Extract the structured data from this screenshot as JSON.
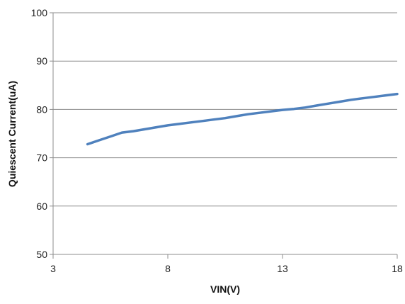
{
  "chart_data": {
    "type": "line",
    "title": "",
    "xlabel": "VIN(V)",
    "ylabel": "Quiescent Current(uA)",
    "xlim": [
      3,
      18
    ],
    "ylim": [
      50,
      100
    ],
    "x_ticks": [
      3,
      8,
      13,
      18
    ],
    "y_ticks": [
      50,
      60,
      70,
      80,
      90,
      100
    ],
    "grid": {
      "horizontal": true,
      "vertical": false
    },
    "legend": "none",
    "colors": {
      "series": "#4f81bd",
      "grid": "#8c8c8c",
      "axis": "#8c8c8c"
    },
    "series": [
      {
        "x": [
          4.5,
          5.0,
          5.5,
          6.0,
          6.5,
          7.0,
          7.5,
          8.0,
          8.5,
          9.0,
          9.5,
          10.0,
          10.5,
          11.0,
          11.5,
          12.0,
          12.5,
          13.0,
          13.5,
          14.0,
          14.5,
          15.0,
          15.5,
          16.0,
          16.5,
          17.0,
          17.5,
          18.0
        ],
        "values": [
          72.8,
          73.6,
          74.4,
          75.2,
          75.5,
          75.9,
          76.3,
          76.7,
          77.0,
          77.3,
          77.6,
          77.9,
          78.2,
          78.6,
          79.0,
          79.3,
          79.6,
          79.9,
          80.1,
          80.4,
          80.8,
          81.2,
          81.6,
          82.0,
          82.3,
          82.6,
          82.9,
          83.2
        ]
      }
    ]
  }
}
